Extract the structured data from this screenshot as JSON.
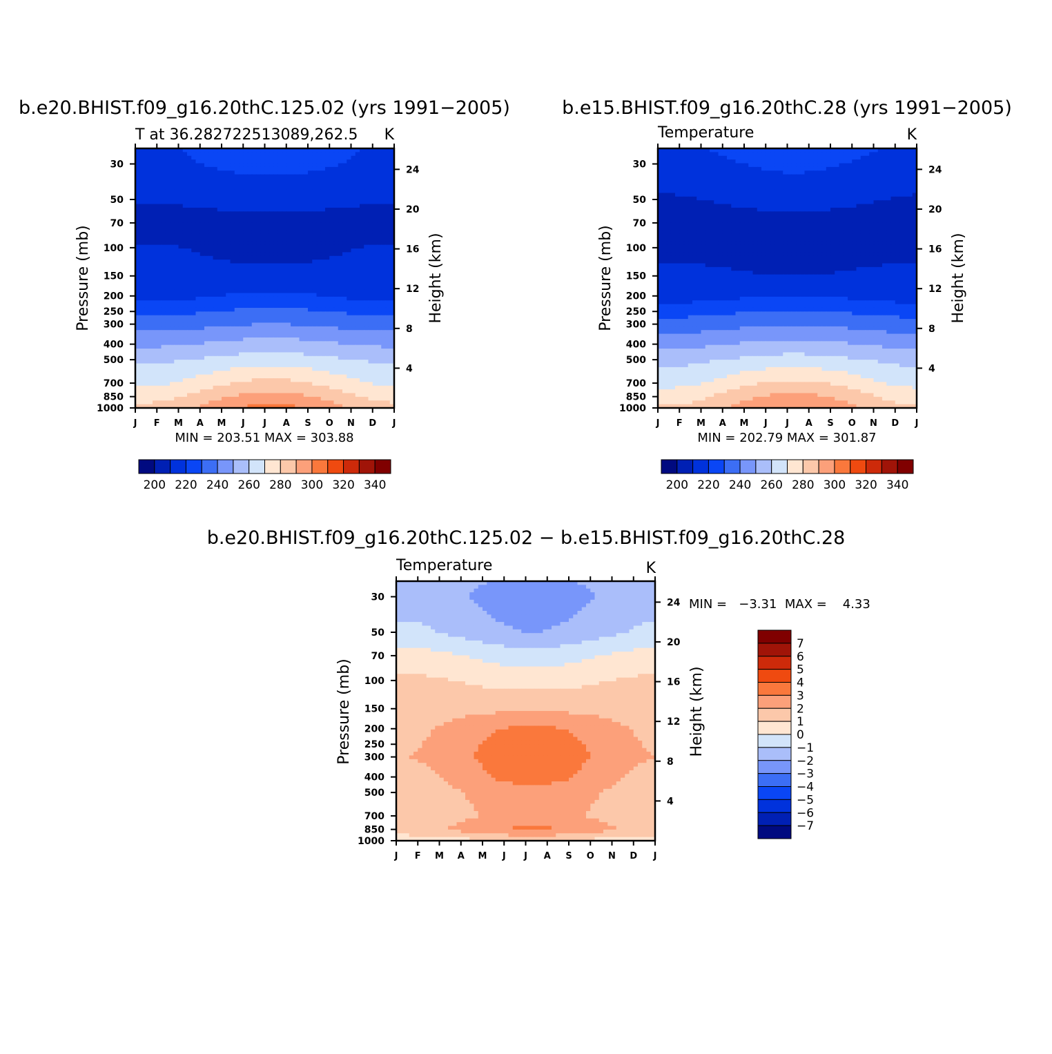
{
  "chart_data": [
    {
      "type": "heatmap",
      "title": "b.e20.BHIST.f09_g16.20thC.125.02 (yrs 1991−2005)",
      "left_string": "T at 36.282722513089,262.5",
      "right_string": "K",
      "xlabel": "",
      "ylabel_left": "Pressure (mb)",
      "ylabel_right": "Height (km)",
      "x_ticks": [
        "J",
        "F",
        "M",
        "A",
        "M",
        "J",
        "J",
        "A",
        "S",
        "O",
        "N",
        "D",
        "J"
      ],
      "pressure_ticks": [
        "30",
        "50",
        "70",
        "100",
        "150",
        "200",
        "250",
        "300",
        "400",
        "500",
        "700",
        "850",
        "1000"
      ],
      "height_ticks": [
        "24",
        "20",
        "16",
        "12",
        "8",
        "4"
      ],
      "minmax_text": "MIN = 203.51 MAX = 303.88",
      "min": 203.51,
      "max": 303.88,
      "colorbar": {
        "levels": [
          200,
          210,
          220,
          230,
          240,
          250,
          260,
          270,
          280,
          290,
          300,
          310,
          320,
          330,
          340
        ],
        "labels": [
          "200",
          "220",
          "240",
          "260",
          "280",
          "300",
          "320",
          "340"
        ]
      },
      "profile": {
        "pressure_levels": [
          25,
          30,
          50,
          70,
          100,
          150,
          200,
          250,
          300,
          400,
          500,
          700,
          850,
          1000
        ],
        "winter": [
          219,
          218,
          211,
          205,
          211,
          213,
          216,
          227,
          235,
          248,
          258,
          268,
          276,
          283
        ],
        "summer": [
          223,
          223,
          214,
          207,
          207,
          212,
          222,
          232,
          240,
          254,
          265,
          283,
          294,
          303
        ]
      }
    },
    {
      "type": "heatmap",
      "title": "b.e15.BHIST.f09_g16.20thC.28 (yrs 1991−2005)",
      "left_string": "Temperature",
      "right_string": "K",
      "xlabel": "",
      "ylabel_left": "Pressure (mb)",
      "ylabel_right": "Height (km)",
      "x_ticks": [
        "J",
        "F",
        "M",
        "A",
        "M",
        "J",
        "J",
        "A",
        "S",
        "O",
        "N",
        "D",
        "J"
      ],
      "pressure_ticks": [
        "30",
        "50",
        "70",
        "100",
        "150",
        "200",
        "250",
        "300",
        "400",
        "500",
        "700",
        "850",
        "1000"
      ],
      "height_ticks": [
        "24",
        "20",
        "16",
        "12",
        "8",
        "4"
      ],
      "minmax_text": "MIN = 202.79 MAX = 301.87",
      "min": 202.79,
      "max": 301.87,
      "colorbar": {
        "levels": [
          200,
          210,
          220,
          230,
          240,
          250,
          260,
          270,
          280,
          290,
          300,
          310,
          320,
          330,
          340
        ],
        "labels": [
          "200",
          "220",
          "240",
          "260",
          "280",
          "300",
          "320",
          "340"
        ]
      },
      "profile": {
        "pressure_levels": [
          25,
          30,
          50,
          70,
          100,
          150,
          200,
          250,
          300,
          400,
          500,
          700,
          850,
          1000
        ],
        "winter": [
          218,
          216,
          209,
          205,
          208,
          212,
          215,
          226,
          234,
          247,
          257,
          267,
          275,
          281
        ],
        "summer": [
          225,
          222,
          214,
          206,
          206,
          210,
          220,
          231,
          239,
          253,
          264,
          282,
          293,
          301
        ]
      }
    },
    {
      "type": "heatmap",
      "title": "b.e20.BHIST.f09_g16.20thC.125.02 − b.e15.BHIST.f09_g16.20thC.28",
      "left_string": "Temperature",
      "right_string": "K",
      "xlabel": "",
      "ylabel_left": "Pressure (mb)",
      "ylabel_right": "Height (km)",
      "x_ticks": [
        "J",
        "F",
        "M",
        "A",
        "M",
        "J",
        "J",
        "A",
        "S",
        "O",
        "N",
        "D",
        "J"
      ],
      "pressure_ticks": [
        "30",
        "50",
        "70",
        "100",
        "150",
        "200",
        "250",
        "300",
        "400",
        "500",
        "700",
        "850",
        "1000"
      ],
      "height_ticks": [
        "24",
        "20",
        "16",
        "12",
        "8",
        "4"
      ],
      "minmax_text": "MIN =   −3.31  MAX =    4.33",
      "min": -3.31,
      "max": 4.33,
      "colorbar": {
        "levels": [
          -7,
          -6,
          -5,
          -4,
          -3,
          -2,
          -1,
          0,
          1,
          2,
          3,
          4,
          5,
          6,
          7
        ],
        "labels": [
          "7",
          "6",
          "5",
          "4",
          "3",
          "2",
          "1",
          "0",
          "−1",
          "−2",
          "−3",
          "−4",
          "−5",
          "−6",
          "−7"
        ]
      },
      "profile": {
        "pressure_levels": [
          25,
          30,
          50,
          70,
          100,
          150,
          200,
          250,
          300,
          400,
          500,
          700,
          850,
          1000
        ],
        "winter": [
          -1.5,
          -1.4,
          -0.8,
          0.4,
          1.2,
          1.6,
          1.8,
          1.9,
          2.0,
          1.7,
          1.5,
          1.3,
          1.6,
          0.4
        ],
        "summer": [
          -2.2,
          -2.6,
          -2.0,
          -0.5,
          0.6,
          1.8,
          3.2,
          3.6,
          3.7,
          3.4,
          2.6,
          2.4,
          3.2,
          1.0
        ]
      }
    }
  ],
  "palette": [
    "#000a80",
    "#0020b4",
    "#0032dc",
    "#0a46f5",
    "#3c6ef5",
    "#7896fa",
    "#aabefa",
    "#d2e4fa",
    "#ffe6d2",
    "#fcc8aa",
    "#fca07a",
    "#fa783c",
    "#ef4a10",
    "#cd2a0a",
    "#a01408",
    "#800000"
  ]
}
